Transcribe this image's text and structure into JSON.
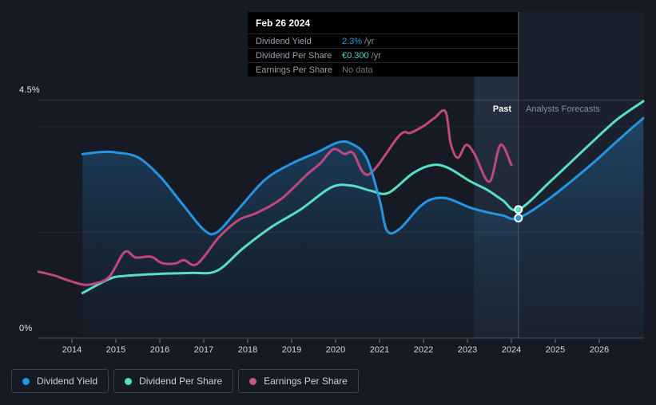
{
  "tooltip": {
    "date": "Feb 26 2024",
    "rows": [
      {
        "label": "Dividend Yield",
        "value": "2.3%",
        "suffix": "/yr",
        "value_color": "#1f9fe9"
      },
      {
        "label": "Dividend Per Share",
        "value": "€0.300",
        "suffix": "/yr",
        "value_color": "#43d9c3"
      },
      {
        "label": "Earnings Per Share",
        "value": "No data",
        "suffix": "",
        "value_color": "#6e7781"
      }
    ]
  },
  "axis": {
    "y_top_label": "4.5%",
    "y_bottom_label": "0%",
    "years": [
      2014,
      2015,
      2016,
      2017,
      2018,
      2019,
      2020,
      2021,
      2022,
      2023,
      2024,
      2025,
      2026
    ]
  },
  "regions": {
    "past_label": "Past",
    "forecast_label": "Analysts Forecasts"
  },
  "legend": {
    "items": [
      {
        "label": "Dividend Yield",
        "color": "#1e98e9"
      },
      {
        "label": "Dividend Per Share",
        "color": "#55e0c4"
      },
      {
        "label": "Earnings Per Share",
        "color": "#c9558c"
      }
    ]
  },
  "chart_data": {
    "type": "line",
    "title": "Dividend history and forecast",
    "x_axis": {
      "tick_years": [
        2014,
        2015,
        2016,
        2017,
        2018,
        2019,
        2020,
        2021,
        2022,
        2023,
        2024,
        2025,
        2026
      ],
      "range": [
        2013.2,
        2027.0
      ]
    },
    "y_axis": {
      "unit": "%",
      "top_label": "4.5%",
      "bottom_label": "0%",
      "range": [
        0,
        4.5
      ],
      "gridline_pct_values": [
        4.5,
        4.0,
        2.0,
        0.0
      ]
    },
    "divider_year": 2024.16,
    "highlight_band_years": [
      2023.15,
      2024.16
    ],
    "colors": {
      "background": "#151a24",
      "tooltip_bg": "#000000",
      "band": "rgba(130,185,240,0.15)",
      "forecast_wash": "rgba(150,195,245,0.04)",
      "divider": "#49545f",
      "marker_ring": "#ffffff"
    },
    "series": [
      {
        "name": "Dividend Yield",
        "unit": "%",
        "color": "#2595e3",
        "area_fill": true,
        "marker": {
          "x": 2024.16,
          "y": 2.27
        },
        "points": [
          [
            2014.24,
            3.48
          ],
          [
            2014.7,
            3.52
          ],
          [
            2015.0,
            3.51
          ],
          [
            2015.5,
            3.42
          ],
          [
            2016.0,
            3.06
          ],
          [
            2016.5,
            2.55
          ],
          [
            2017.0,
            2.05
          ],
          [
            2017.3,
            2.0
          ],
          [
            2017.8,
            2.45
          ],
          [
            2018.4,
            3.0
          ],
          [
            2019.0,
            3.3
          ],
          [
            2019.6,
            3.52
          ],
          [
            2020.05,
            3.7
          ],
          [
            2020.35,
            3.68
          ],
          [
            2020.7,
            3.42
          ],
          [
            2021.0,
            2.62
          ],
          [
            2021.17,
            2.03
          ],
          [
            2021.45,
            2.06
          ],
          [
            2021.9,
            2.47
          ],
          [
            2022.2,
            2.63
          ],
          [
            2022.55,
            2.64
          ],
          [
            2023.05,
            2.47
          ],
          [
            2023.45,
            2.38
          ],
          [
            2023.8,
            2.32
          ],
          [
            2024.16,
            2.27
          ],
          [
            2024.9,
            2.66
          ],
          [
            2025.8,
            3.27
          ],
          [
            2026.4,
            3.72
          ],
          [
            2027.0,
            4.16
          ]
        ]
      },
      {
        "name": "Dividend Per Share",
        "unit": "EUR",
        "color": "#58dfc7",
        "area_fill": false,
        "marker": {
          "x": 2024.16,
          "y": 0.3
        },
        "points": [
          [
            2014.24,
            0.105
          ],
          [
            2014.85,
            0.138
          ],
          [
            2015.2,
            0.145
          ],
          [
            2016.0,
            0.15
          ],
          [
            2016.7,
            0.152
          ],
          [
            2017.3,
            0.157
          ],
          [
            2017.9,
            0.21
          ],
          [
            2018.55,
            0.26
          ],
          [
            2019.2,
            0.3
          ],
          [
            2019.9,
            0.352
          ],
          [
            2020.36,
            0.356
          ],
          [
            2020.8,
            0.344
          ],
          [
            2021.2,
            0.339
          ],
          [
            2021.76,
            0.385
          ],
          [
            2022.2,
            0.404
          ],
          [
            2022.55,
            0.398
          ],
          [
            2023.05,
            0.367
          ],
          [
            2023.45,
            0.346
          ],
          [
            2023.8,
            0.322
          ],
          [
            2024.16,
            0.3
          ],
          [
            2024.9,
            0.367
          ],
          [
            2025.8,
            0.454
          ],
          [
            2026.4,
            0.51
          ],
          [
            2027.0,
            0.553
          ]
        ]
      },
      {
        "name": "Earnings Per Share",
        "unit": "EUR",
        "color": "#c0487d",
        "area_fill": false,
        "points": [
          [
            2013.24,
            0.155
          ],
          [
            2013.6,
            0.146
          ],
          [
            2013.85,
            0.137
          ],
          [
            2014.24,
            0.125
          ],
          [
            2014.5,
            0.127
          ],
          [
            2014.85,
            0.143
          ],
          [
            2015.2,
            0.201
          ],
          [
            2015.45,
            0.188
          ],
          [
            2015.8,
            0.19
          ],
          [
            2016.05,
            0.175
          ],
          [
            2016.35,
            0.174
          ],
          [
            2016.55,
            0.182
          ],
          [
            2016.85,
            0.173
          ],
          [
            2017.35,
            0.236
          ],
          [
            2017.8,
            0.276
          ],
          [
            2018.2,
            0.292
          ],
          [
            2018.75,
            0.324
          ],
          [
            2019.35,
            0.382
          ],
          [
            2019.65,
            0.408
          ],
          [
            2019.95,
            0.441
          ],
          [
            2020.2,
            0.43
          ],
          [
            2020.4,
            0.432
          ],
          [
            2020.75,
            0.382
          ],
          [
            2021.45,
            0.473
          ],
          [
            2021.7,
            0.479
          ],
          [
            2022.0,
            0.495
          ],
          [
            2022.25,
            0.514
          ],
          [
            2022.5,
            0.529
          ],
          [
            2022.62,
            0.454
          ],
          [
            2022.78,
            0.421
          ],
          [
            2022.97,
            0.451
          ],
          [
            2023.16,
            0.43
          ],
          [
            2023.5,
            0.365
          ],
          [
            2023.75,
            0.451
          ],
          [
            2024.0,
            0.404
          ]
        ]
      }
    ]
  }
}
